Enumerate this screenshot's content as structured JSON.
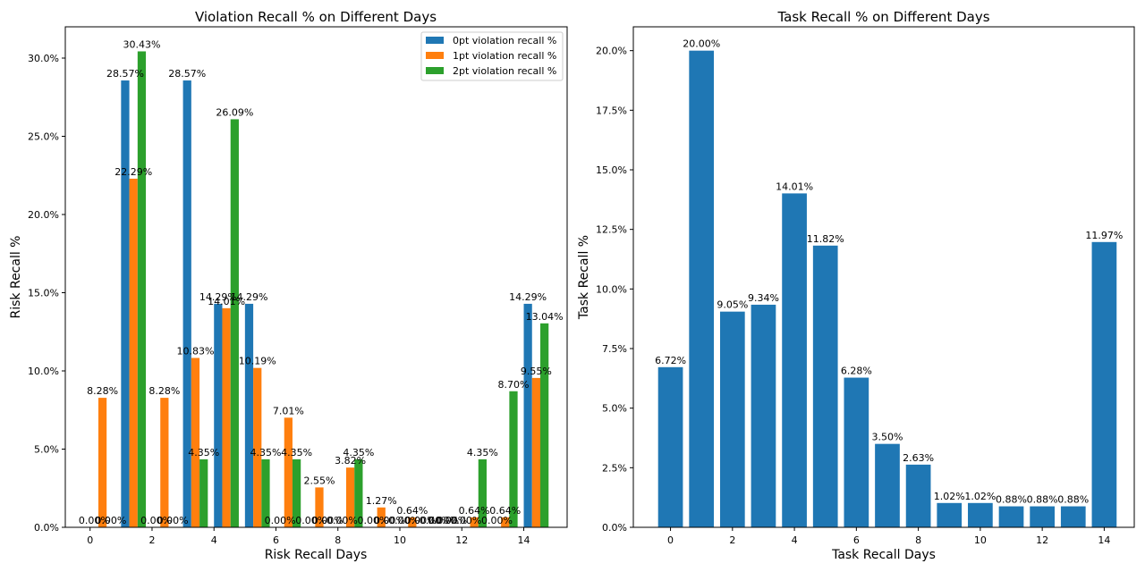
{
  "chart_data": [
    {
      "type": "bar",
      "title": "Violation Recall % on Different Days",
      "xlabel": "Risk Recall Days",
      "ylabel": "Risk Recall %",
      "x": [
        0,
        1,
        2,
        3,
        4,
        5,
        6,
        7,
        8,
        9,
        10,
        11,
        12,
        13,
        14
      ],
      "xlim": [
        -0.8,
        15.4
      ],
      "xticks": [
        "0",
        "2",
        "4",
        "6",
        "8",
        "10",
        "12",
        "14"
      ],
      "ylim": [
        0,
        32
      ],
      "yticks": [
        "0.0%",
        "5.0%",
        "10.0%",
        "15.0%",
        "20.0%",
        "25.0%",
        "30.0%"
      ],
      "legend_position": "top-right",
      "series": [
        {
          "name": "0pt violation recall %",
          "color": "#1f77b4",
          "values": [
            0,
            28.57,
            0,
            28.57,
            14.29,
            14.29,
            0,
            0,
            0,
            0,
            0,
            0,
            0,
            0,
            14.29
          ],
          "labels": [
            "0.00%",
            "28.57%",
            "0.00%",
            "28.57%",
            "14.29%",
            "14.29%",
            "0.00%",
            "0.00%",
            "0.00%",
            "0.00%",
            "0.00%",
            "0.00%",
            "0.00%",
            "0.00%",
            "14.29%"
          ]
        },
        {
          "name": "1pt violation recall %",
          "color": "#ff7f0e",
          "values": [
            8.28,
            22.29,
            8.28,
            10.83,
            14.01,
            10.19,
            7.01,
            2.55,
            3.82,
            1.27,
            0.64,
            0,
            0.64,
            0.64,
            9.55
          ],
          "labels": [
            "8.28%",
            "22.29%",
            "8.28%",
            "10.83%",
            "14.01%",
            "10.19%",
            "7.01%",
            "2.55%",
            "3.82%",
            "1.27%",
            "0.64%",
            "0.00%",
            "0.64%",
            "0.64%",
            "9.55%"
          ]
        },
        {
          "name": "2pt violation recall %",
          "color": "#2ca02c",
          "values": [
            0,
            30.43,
            0,
            4.35,
            26.09,
            4.35,
            4.35,
            0,
            4.35,
            0,
            0,
            0,
            4.35,
            8.7,
            13.04
          ],
          "labels": [
            "0.00%",
            "30.43%",
            "0.00%",
            "4.35%",
            "26.09%",
            "4.35%",
            "4.35%",
            "0.00%",
            "4.35%",
            "0.00%",
            "0.00%",
            "0.00%",
            "4.35%",
            "8.70%",
            "13.04%"
          ]
        }
      ]
    },
    {
      "type": "bar",
      "title": "Task Recall % on Different Days",
      "xlabel": "Task Recall Days",
      "ylabel": "Task Recall %",
      "x": [
        0,
        1,
        2,
        3,
        4,
        5,
        6,
        7,
        8,
        9,
        10,
        11,
        12,
        13,
        14
      ],
      "xlim": [
        -1.2,
        14.97
      ],
      "xticks": [
        "0",
        "2",
        "4",
        "6",
        "8",
        "10",
        "12",
        "14"
      ],
      "ylim": [
        0,
        21
      ],
      "yticks": [
        "0.0%",
        "2.5%",
        "5.0%",
        "7.5%",
        "10.0%",
        "12.5%",
        "15.0%",
        "17.5%",
        "20.0%"
      ],
      "series": [
        {
          "color": "#1f77b4",
          "values": [
            6.72,
            20.0,
            9.05,
            9.34,
            14.01,
            11.82,
            6.28,
            3.5,
            2.63,
            1.02,
            1.02,
            0.88,
            0.88,
            0.88,
            11.97
          ],
          "labels": [
            "6.72%",
            "20.00%",
            "9.05%",
            "9.34%",
            "14.01%",
            "11.82%",
            "6.28%",
            "3.50%",
            "2.63%",
            "1.02%",
            "1.02%",
            "0.88%",
            "0.88%",
            "0.88%",
            "11.97%"
          ]
        }
      ]
    }
  ]
}
